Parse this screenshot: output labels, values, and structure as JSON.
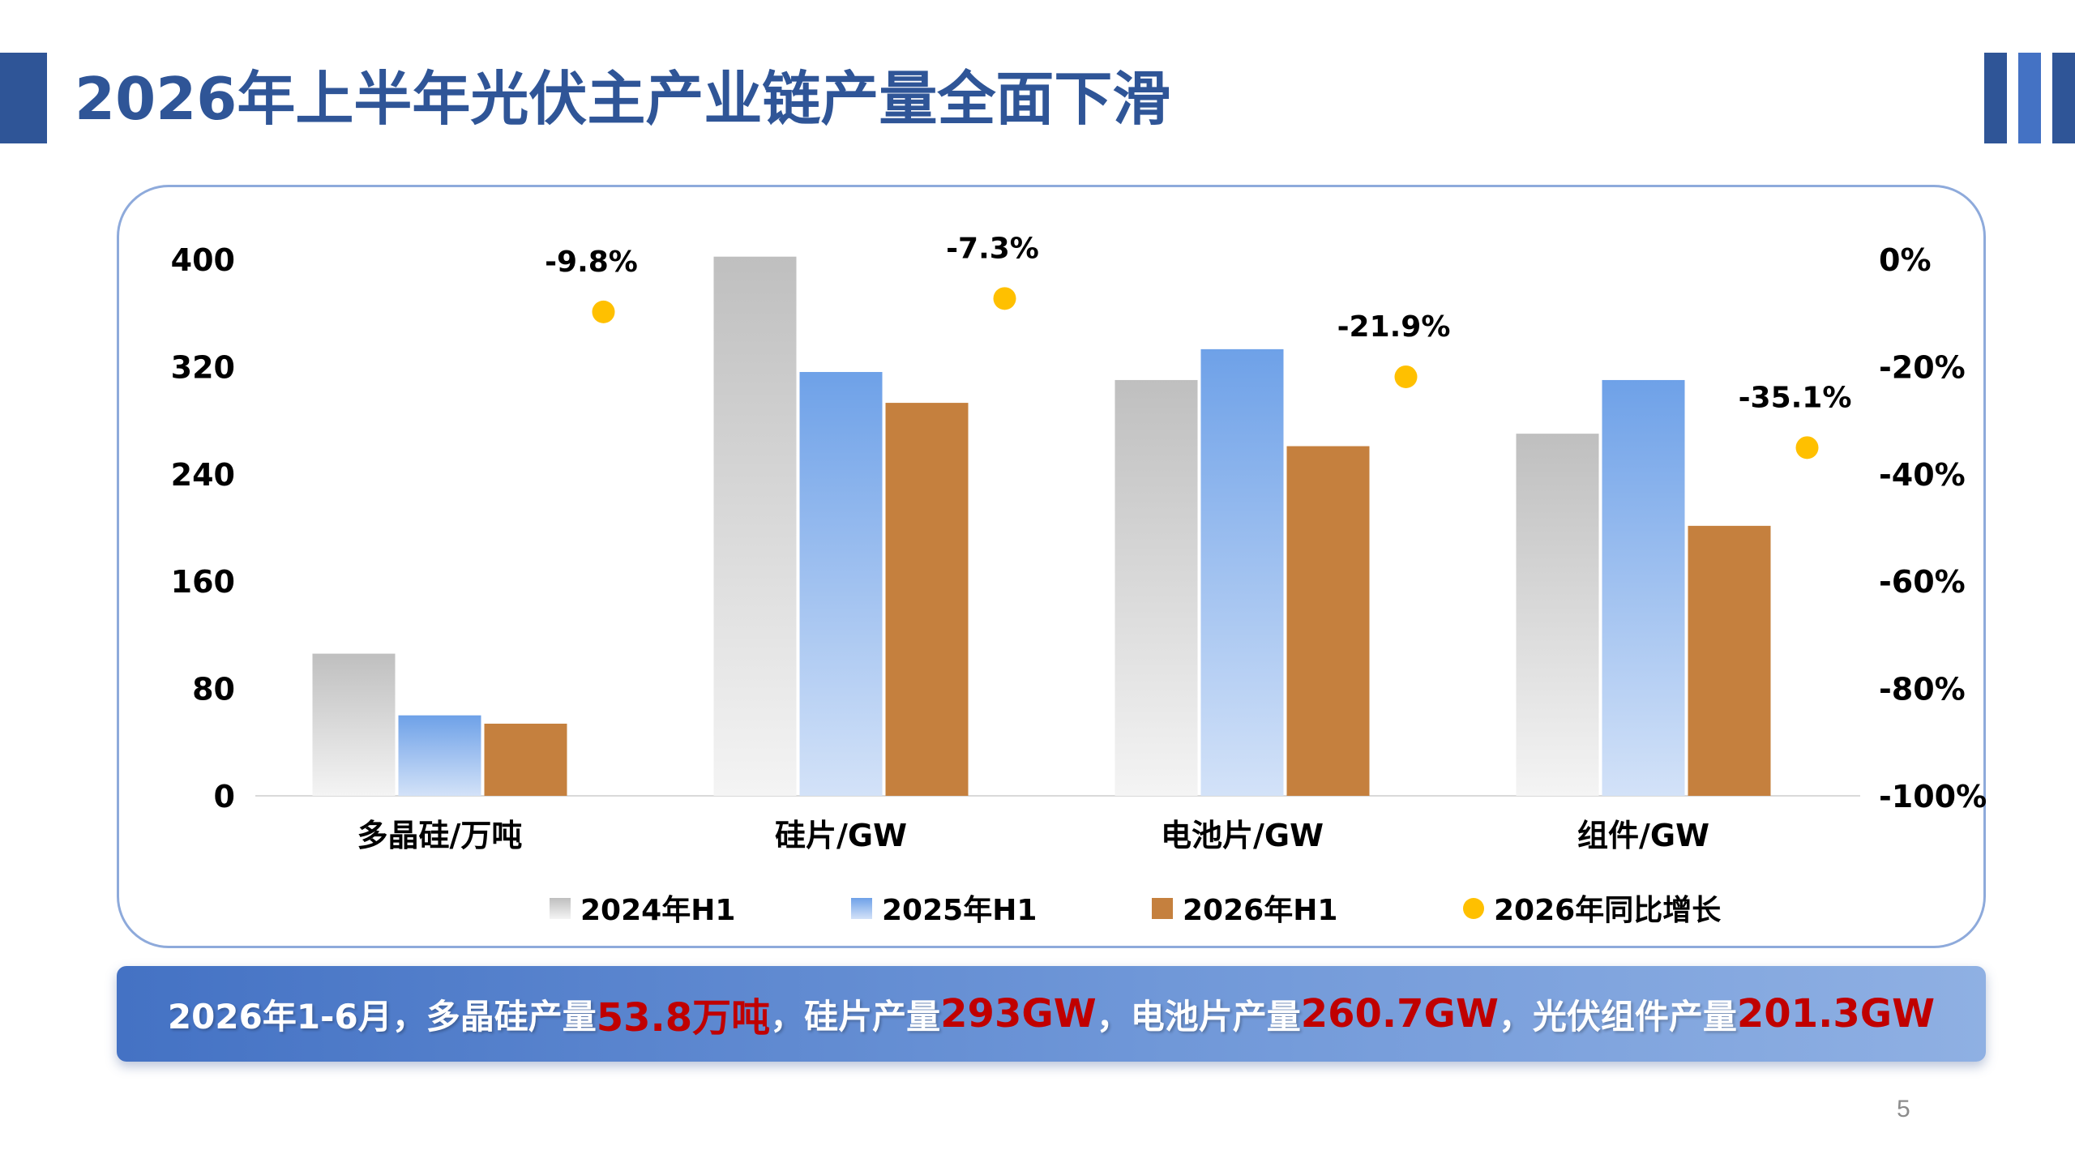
{
  "slide": {
    "title": "2026年上半年光伏主产业链产量全面下滑",
    "page_number": "5",
    "accent_color": "#2f5597",
    "right_bar_colors": [
      "#2f5597",
      "#4472c4",
      "#2f5597"
    ]
  },
  "summary": {
    "p1": "2026年1-6月，多晶硅产量",
    "v1": "53.8万吨",
    "p2": "，硅片产量",
    "v2": "293GW",
    "p3": "，电池片产量",
    "v3": "260.7GW",
    "p4": "，光伏组件产量",
    "v4": "201.3GW",
    "highlight_color": "#c00000"
  },
  "chart_data": {
    "type": "bar",
    "categories": [
      "多晶硅/万吨",
      "硅片/GW",
      "电池片/GW",
      "组件/GW"
    ],
    "series": [
      {
        "name": "2024年H1",
        "values": [
          106,
          402,
          310,
          270
        ],
        "color": "#bfbfbf"
      },
      {
        "name": "2025年H1",
        "values": [
          60,
          316,
          333,
          310
        ],
        "color": "#6ea1e8"
      },
      {
        "name": "2026年H1",
        "values": [
          53.8,
          293,
          260.7,
          201.3
        ],
        "color": "#c5803e"
      }
    ],
    "line_series": {
      "name": "2026年同比增长",
      "type": "scatter",
      "axis": "right",
      "values": [
        -9.8,
        -7.3,
        -21.9,
        -35.1
      ],
      "labels": [
        "-9.8%",
        "-7.3%",
        "-21.9%",
        "-35.1%"
      ],
      "color": "#ffc000"
    },
    "y_left": {
      "ticks": [
        0,
        80,
        160,
        240,
        320,
        400
      ],
      "range": [
        0,
        400
      ]
    },
    "y_right": {
      "ticks": [
        "0%",
        "-20%",
        "-40%",
        "-60%",
        "-80%",
        "-100%"
      ],
      "range": [
        -100,
        0
      ]
    },
    "legend_position": "bottom",
    "grid": false
  }
}
